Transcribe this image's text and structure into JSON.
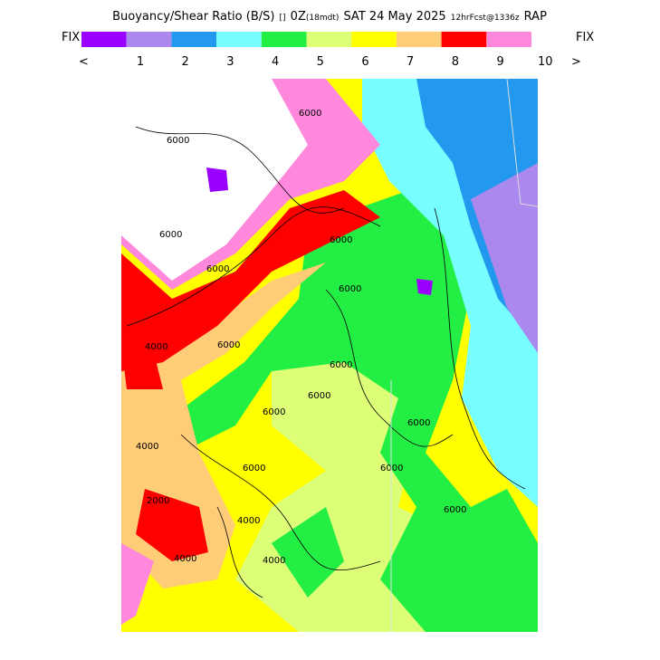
{
  "header": {
    "title": "Buoyancy/Shear Ratio (B/S)",
    "marker": "[]",
    "valid": "0Z",
    "local": "(18mdt)",
    "date": "SAT 24 May 2025",
    "forecast": "12hrFcst@1336z",
    "model": "RAP"
  },
  "scale": {
    "left": "FIX",
    "right": "FIX",
    "prev": "<",
    "next": ">",
    "colors": [
      "#9900ff",
      "#aa88ee",
      "#2299ee",
      "#77ffff",
      "#22ee44",
      "#ddff77",
      "#ffff00",
      "#ffcc77",
      "#ff0000",
      "#ff88dd"
    ],
    "labels": [
      "1",
      "2",
      "3",
      "4",
      "5",
      "6",
      "7",
      "8",
      "9",
      "10"
    ]
  },
  "map": {
    "contour_labels": [
      "6000",
      "6000",
      "6000",
      "6000",
      "6000",
      "6000",
      "4000",
      "6000",
      "6000",
      "6000",
      "4000",
      "6000",
      "6000",
      "2000",
      "4000",
      "4000",
      "6000",
      "4000",
      "6000",
      "6000"
    ]
  }
}
